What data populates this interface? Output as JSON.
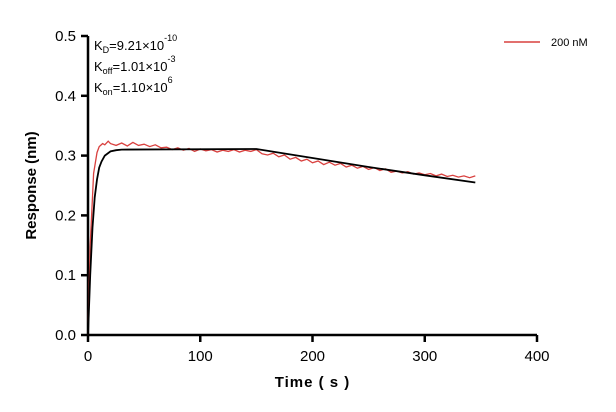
{
  "chart_data": {
    "type": "line",
    "xlabel": "Time ( s )",
    "ylabel": "Response (nm)",
    "xlim": [
      0,
      400
    ],
    "ylim": [
      0,
      0.5
    ],
    "xticks": [
      0,
      100,
      200,
      300,
      400
    ],
    "yticks": [
      "0.0",
      "0.1",
      "0.2",
      "0.3",
      "0.4",
      "0.5"
    ],
    "grid": false,
    "legend_position": "top-right",
    "annotations": [
      {
        "base": "K",
        "sub": "D",
        "text": "=9.21×10",
        "sup": "-10"
      },
      {
        "base": "K",
        "sub": "off",
        "text": "=1.01×10",
        "sup": "-3"
      },
      {
        "base": "K",
        "sub": "on",
        "text": "=1.10×10",
        "sup": "6"
      }
    ],
    "series": [
      {
        "name": "200 nM",
        "color": "#d9413f",
        "role": "measured",
        "x": [
          0,
          2,
          5,
          8,
          10,
          13,
          15,
          18,
          20,
          25,
          30,
          35,
          40,
          45,
          50,
          55,
          60,
          65,
          70,
          75,
          80,
          85,
          90,
          95,
          100,
          105,
          110,
          115,
          120,
          125,
          130,
          135,
          140,
          145,
          150,
          155,
          160,
          165,
          170,
          175,
          180,
          185,
          190,
          195,
          200,
          205,
          210,
          215,
          220,
          225,
          230,
          235,
          240,
          245,
          250,
          255,
          260,
          265,
          270,
          275,
          280,
          285,
          290,
          295,
          300,
          305,
          310,
          315,
          320,
          325,
          330,
          335,
          340,
          345
        ],
        "y": [
          0,
          0.15,
          0.27,
          0.305,
          0.315,
          0.32,
          0.318,
          0.324,
          0.32,
          0.317,
          0.321,
          0.316,
          0.322,
          0.317,
          0.319,
          0.315,
          0.318,
          0.313,
          0.314,
          0.31,
          0.313,
          0.309,
          0.312,
          0.307,
          0.311,
          0.308,
          0.31,
          0.306,
          0.309,
          0.307,
          0.31,
          0.306,
          0.309,
          0.307,
          0.31,
          0.303,
          0.301,
          0.304,
          0.298,
          0.301,
          0.294,
          0.297,
          0.291,
          0.294,
          0.288,
          0.291,
          0.285,
          0.289,
          0.284,
          0.287,
          0.281,
          0.284,
          0.279,
          0.282,
          0.277,
          0.28,
          0.275,
          0.278,
          0.272,
          0.274,
          0.271,
          0.273,
          0.269,
          0.271,
          0.268,
          0.27,
          0.266,
          0.269,
          0.265,
          0.267,
          0.264,
          0.266,
          0.263,
          0.266
        ]
      },
      {
        "role": "fit",
        "color": "#000000",
        "x": [
          0,
          2,
          4,
          6,
          8,
          10,
          12,
          15,
          20,
          25,
          30,
          150,
          200,
          250,
          300,
          345
        ],
        "y": [
          0,
          0.1,
          0.18,
          0.23,
          0.26,
          0.28,
          0.29,
          0.3,
          0.307,
          0.309,
          0.31,
          0.311,
          0.296,
          0.281,
          0.267,
          0.255
        ]
      }
    ]
  }
}
